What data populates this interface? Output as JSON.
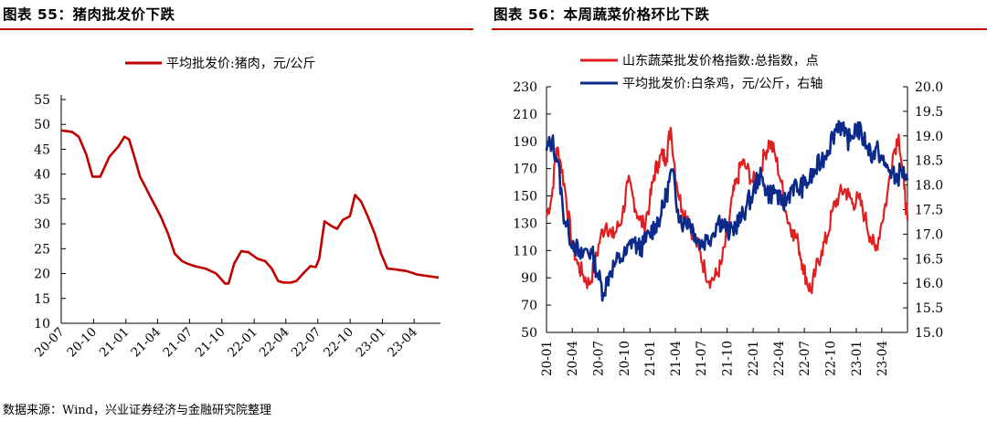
{
  "left": {
    "title": "图表 55：猪肉批发价下跌"
  },
  "right": {
    "title": "图表 56：本周蔬菜价格环比下跌"
  },
  "source": "数据来源：Wind，兴业证券经济与金融研究院整理",
  "colors": {
    "rule": "#c00000",
    "pork": "#c00000",
    "veg": "#e02020",
    "chicken": "#0b2a8a"
  },
  "chart_data": [
    {
      "type": "line",
      "legend_position": "top",
      "grid": false,
      "ylim": [
        10,
        55
      ],
      "yticks": [
        10,
        15,
        20,
        25,
        30,
        35,
        40,
        45,
        50,
        55
      ],
      "xlim": [
        "2020-07-01",
        "2023-06-15"
      ],
      "xticks": [
        "20-07",
        "20-10",
        "21-01",
        "21-04",
        "21-07",
        "21-10",
        "22-01",
        "22-04",
        "22-07",
        "22-10",
        "23-01",
        "23-04"
      ],
      "series": [
        {
          "name": "平均批发价:猪肉，元/公斤",
          "x": [
            "2020-07-01",
            "2020-08-01",
            "2020-08-20",
            "2020-09-10",
            "2020-09-28",
            "2020-10-20",
            "2020-11-15",
            "2020-12-10",
            "2020-12-28",
            "2021-01-10",
            "2021-01-25",
            "2021-02-10",
            "2021-02-25",
            "2021-03-15",
            "2021-04-10",
            "2021-05-01",
            "2021-05-20",
            "2021-06-10",
            "2021-06-25",
            "2021-07-15",
            "2021-08-15",
            "2021-09-15",
            "2021-10-10",
            "2021-10-20",
            "2021-11-05",
            "2021-11-25",
            "2021-12-15",
            "2022-01-10",
            "2022-02-01",
            "2022-02-20",
            "2022-03-10",
            "2022-03-25",
            "2022-04-15",
            "2022-05-01",
            "2022-05-20",
            "2022-06-10",
            "2022-06-25",
            "2022-07-05",
            "2022-07-20",
            "2022-08-10",
            "2022-08-25",
            "2022-09-10",
            "2022-09-30",
            "2022-10-15",
            "2022-11-01",
            "2022-11-20",
            "2022-12-10",
            "2022-12-28",
            "2023-01-15",
            "2023-02-10",
            "2023-03-10",
            "2023-04-10",
            "2023-05-10",
            "2023-06-10"
          ],
          "y": [
            48.8,
            48.5,
            47.5,
            44,
            39.5,
            39.5,
            43.5,
            45.5,
            47.5,
            47,
            43.5,
            39.5,
            37.5,
            35,
            31.5,
            28,
            24,
            22.5,
            22,
            21.5,
            21,
            20,
            18,
            18,
            22,
            24.5,
            24.3,
            23,
            22.5,
            21,
            18.5,
            18.2,
            18.2,
            18.5,
            20,
            21.5,
            21.3,
            23,
            30.5,
            29.5,
            29,
            30.8,
            31.5,
            35.8,
            34.5,
            31.5,
            28,
            24,
            21,
            20.8,
            20.5,
            19.8,
            19.5,
            19.2
          ]
        }
      ]
    },
    {
      "type": "line",
      "legend_position": "top",
      "grid": false,
      "ylim": [
        50,
        230
      ],
      "yticks": [
        50,
        70,
        90,
        110,
        130,
        150,
        170,
        190,
        210,
        230
      ],
      "y2lim": [
        15.0,
        20.0
      ],
      "y2ticks": [
        "15.0",
        "15.5",
        "16.0",
        "16.5",
        "17.0",
        "17.5",
        "18.0",
        "18.5",
        "19.0",
        "19.5",
        "20.0"
      ],
      "xlim": [
        "2020-01-01",
        "2023-07-01"
      ],
      "xticks": [
        "20-01",
        "20-04",
        "20-07",
        "20-10",
        "21-01",
        "21-04",
        "21-07",
        "21-10",
        "22-01",
        "22-04",
        "22-07",
        "22-10",
        "23-01",
        "23-04"
      ],
      "series": [
        {
          "name": "山东蔬菜批发价格指数:总指数，点",
          "axis": "left",
          "x": [
            "2020-01-01",
            "2020-01-20",
            "2020-02-05",
            "2020-02-20",
            "2020-03-10",
            "2020-03-31",
            "2020-04-20",
            "2020-05-10",
            "2020-05-31",
            "2020-06-20",
            "2020-07-10",
            "2020-07-31",
            "2020-08-20",
            "2020-09-05",
            "2020-09-25",
            "2020-10-15",
            "2020-11-01",
            "2020-11-20",
            "2020-12-10",
            "2020-12-31",
            "2021-01-15",
            "2021-01-31",
            "2021-02-15",
            "2021-02-28",
            "2021-03-15",
            "2021-04-05",
            "2021-04-25",
            "2021-05-15",
            "2021-06-05",
            "2021-06-25",
            "2021-07-15",
            "2021-08-05",
            "2021-08-25",
            "2021-09-10",
            "2021-09-30",
            "2021-10-20",
            "2021-11-05",
            "2021-11-20",
            "2021-12-10",
            "2021-12-31",
            "2022-01-20",
            "2022-02-10",
            "2022-02-28",
            "2022-03-20",
            "2022-04-10",
            "2022-04-30",
            "2022-05-20",
            "2022-06-10",
            "2022-06-25",
            "2022-07-10",
            "2022-07-25",
            "2022-08-10",
            "2022-08-31",
            "2022-09-20",
            "2022-10-10",
            "2022-10-31",
            "2022-11-20",
            "2022-12-05",
            "2022-12-20",
            "2023-01-10",
            "2023-01-31",
            "2023-02-20",
            "2023-03-10",
            "2023-03-31",
            "2023-04-20",
            "2023-05-10",
            "2023-05-31",
            "2023-06-20",
            "2023-07-01"
          ],
          "y": [
            135,
            150,
            185,
            175,
            150,
            115,
            100,
            92,
            85,
            100,
            120,
            130,
            120,
            125,
            135,
            160,
            150,
            135,
            128,
            145,
            165,
            175,
            180,
            178,
            200,
            160,
            140,
            135,
            120,
            110,
            95,
            88,
            92,
            100,
            120,
            150,
            160,
            175,
            170,
            160,
            165,
            180,
            190,
            180,
            160,
            135,
            125,
            115,
            100,
            88,
            80,
            95,
            110,
            120,
            140,
            150,
            155,
            150,
            145,
            148,
            135,
            120,
            110,
            130,
            150,
            180,
            195,
            155,
            132
          ]
        },
        {
          "name": "平均批发价:白条鸡，元/公斤，右轴",
          "axis": "right",
          "x": [
            "2020-01-01",
            "2020-01-20",
            "2020-02-10",
            "2020-02-28",
            "2020-03-20",
            "2020-04-10",
            "2020-04-30",
            "2020-05-20",
            "2020-06-10",
            "2020-06-30",
            "2020-07-20",
            "2020-08-10",
            "2020-08-31",
            "2020-09-20",
            "2020-10-10",
            "2020-10-31",
            "2020-11-20",
            "2020-12-10",
            "2020-12-31",
            "2021-01-20",
            "2021-02-10",
            "2021-02-28",
            "2021-03-20",
            "2021-04-10",
            "2021-04-30",
            "2021-05-20",
            "2021-06-10",
            "2021-06-30",
            "2021-07-20",
            "2021-08-10",
            "2021-08-31",
            "2021-09-20",
            "2021-10-10",
            "2021-10-31",
            "2021-11-20",
            "2021-12-10",
            "2021-12-31",
            "2022-01-20",
            "2022-02-10",
            "2022-02-28",
            "2022-03-20",
            "2022-04-10",
            "2022-04-30",
            "2022-05-20",
            "2022-06-10",
            "2022-06-30",
            "2022-07-20",
            "2022-08-10",
            "2022-08-31",
            "2022-09-20",
            "2022-10-10",
            "2022-10-31",
            "2022-11-20",
            "2022-12-10",
            "2022-12-31",
            "2023-01-20",
            "2023-02-10",
            "2023-02-28",
            "2023-03-20",
            "2023-04-10",
            "2023-04-30",
            "2023-05-20",
            "2023-06-10",
            "2023-07-01"
          ],
          "y": [
            18.7,
            18.9,
            18.5,
            17.5,
            17,
            16.8,
            16.5,
            16.7,
            16.6,
            16.2,
            15.8,
            16.2,
            16.4,
            16.5,
            16.6,
            16.9,
            16.7,
            16.8,
            17,
            17.2,
            17.4,
            17.8,
            18.3,
            17.5,
            17.2,
            17.3,
            17.0,
            16.8,
            16.9,
            17.0,
            17.3,
            17.2,
            17.0,
            17.2,
            17.3,
            17.6,
            17.8,
            18.2,
            18.0,
            17.8,
            17.9,
            17.6,
            17.7,
            18.0,
            17.9,
            18.0,
            18.1,
            18.3,
            18.5,
            18.7,
            19.0,
            19.3,
            19.0,
            18.9,
            19.2,
            19.0,
            18.8,
            18.6,
            18.7,
            18.4,
            18.3,
            18.1,
            18.3,
            18.1
          ]
        }
      ]
    }
  ]
}
